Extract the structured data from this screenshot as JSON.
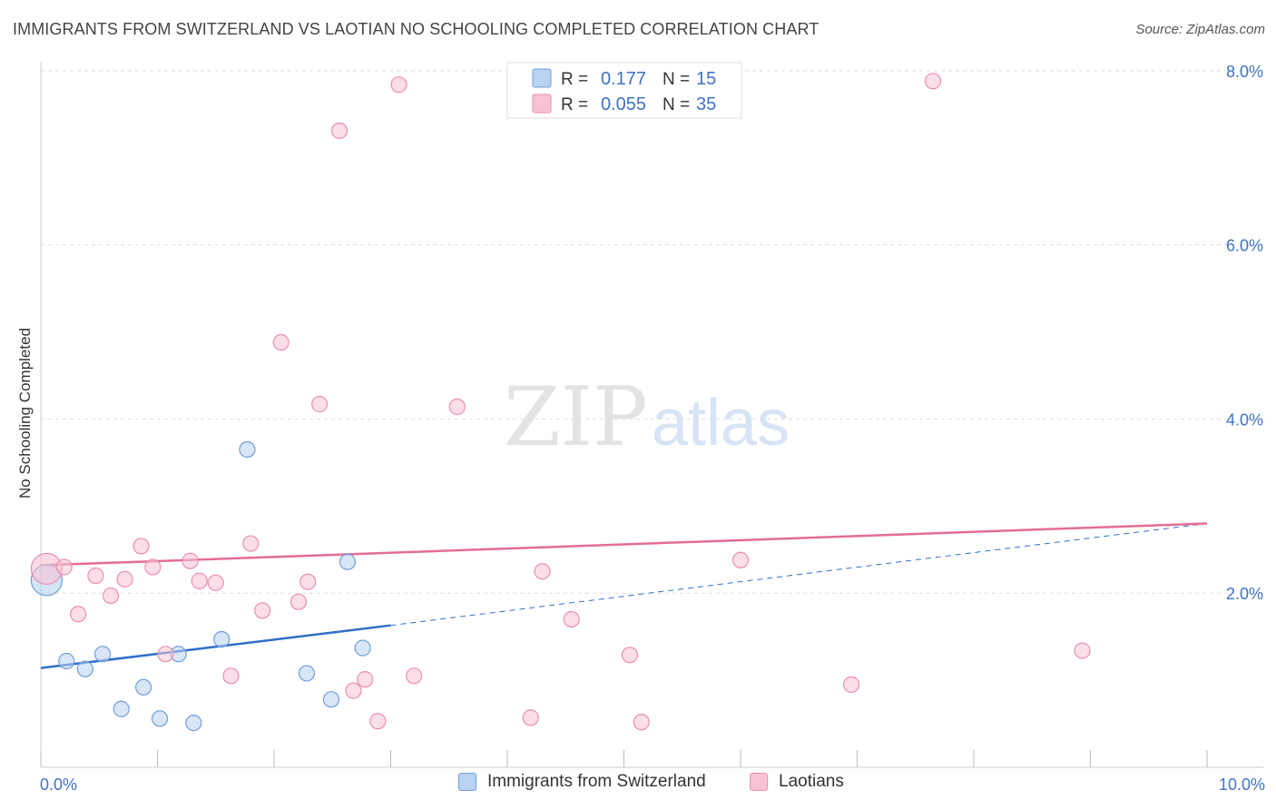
{
  "header": {
    "title": "IMMIGRANTS FROM SWITZERLAND VS LAOTIAN NO SCHOOLING COMPLETED CORRELATION CHART",
    "source": "Source: ZipAtlas.com"
  },
  "watermark": {
    "zip": "ZIP",
    "atlas": "atlas"
  },
  "colors": {
    "blue_fill": "#b9d2f2",
    "blue_stroke": "#6f9fd8",
    "blue_line": "#2f6fc9",
    "pink_fill": "#f7c3d3",
    "pink_stroke": "#ea8fac",
    "pink_line": "#e46d95",
    "value_text": "#3f73c4",
    "grid": "#dddddd"
  },
  "legend": {
    "rows": [
      {
        "r_label": "R = ",
        "r_value": "0.177",
        "n_label": "N = ",
        "n_value": "15",
        "series": "blue"
      },
      {
        "r_label": "R = ",
        "r_value": "0.055",
        "n_label": "N = ",
        "n_value": "35",
        "series": "pink"
      }
    ]
  },
  "chart_data": {
    "type": "scatter",
    "title": "IMMIGRANTS FROM SWITZERLAND VS LAOTIAN NO SCHOOLING COMPLETED CORRELATION CHART",
    "xlabel": "",
    "ylabel": "No Schooling Completed",
    "xlim": [
      0,
      10
    ],
    "ylim": [
      0,
      8.4
    ],
    "x_tick_labels": [
      "0.0%",
      "10.0%"
    ],
    "y_ticks": [
      2,
      4,
      6,
      8
    ],
    "y_tick_labels": [
      "2.0%",
      "4.0%",
      "6.0%",
      "8.0%"
    ],
    "grid": true,
    "legend_position": "bottom",
    "series": [
      {
        "name": "Immigrants from Switzerland",
        "color": "blue",
        "points": [
          {
            "x": 0.05,
            "y": 2.15,
            "big": true
          },
          {
            "x": 0.22,
            "y": 1.22
          },
          {
            "x": 0.38,
            "y": 1.13
          },
          {
            "x": 0.53,
            "y": 1.3
          },
          {
            "x": 0.69,
            "y": 0.67
          },
          {
            "x": 0.88,
            "y": 0.92
          },
          {
            "x": 1.02,
            "y": 0.56
          },
          {
            "x": 1.18,
            "y": 1.3
          },
          {
            "x": 1.31,
            "y": 0.51
          },
          {
            "x": 1.55,
            "y": 1.47
          },
          {
            "x": 1.77,
            "y": 3.65
          },
          {
            "x": 2.28,
            "y": 1.08
          },
          {
            "x": 2.49,
            "y": 0.78
          },
          {
            "x": 2.63,
            "y": 2.36
          },
          {
            "x": 2.76,
            "y": 1.37
          }
        ],
        "trend": {
          "x0": 0,
          "y0": 1.14,
          "x1": 3.0,
          "y1": 1.63,
          "dash_x1": 10,
          "dash_y1": 2.8
        }
      },
      {
        "name": "Laotians",
        "color": "pink",
        "points": [
          {
            "x": 0.05,
            "y": 2.28,
            "big": true
          },
          {
            "x": 0.2,
            "y": 2.3
          },
          {
            "x": 0.32,
            "y": 1.76
          },
          {
            "x": 0.47,
            "y": 2.2
          },
          {
            "x": 0.6,
            "y": 1.97
          },
          {
            "x": 0.72,
            "y": 2.16
          },
          {
            "x": 0.86,
            "y": 2.54
          },
          {
            "x": 0.96,
            "y": 2.3
          },
          {
            "x": 1.07,
            "y": 1.3
          },
          {
            "x": 1.28,
            "y": 2.37
          },
          {
            "x": 1.36,
            "y": 2.14
          },
          {
            "x": 1.5,
            "y": 2.12
          },
          {
            "x": 1.63,
            "y": 1.05
          },
          {
            "x": 1.8,
            "y": 2.57
          },
          {
            "x": 1.9,
            "y": 1.8
          },
          {
            "x": 2.06,
            "y": 4.88
          },
          {
            "x": 2.21,
            "y": 1.9
          },
          {
            "x": 2.29,
            "y": 2.13
          },
          {
            "x": 2.39,
            "y": 4.17
          },
          {
            "x": 2.56,
            "y": 7.31
          },
          {
            "x": 2.68,
            "y": 0.88
          },
          {
            "x": 2.78,
            "y": 1.01
          },
          {
            "x": 2.89,
            "y": 0.53
          },
          {
            "x": 3.07,
            "y": 7.84
          },
          {
            "x": 3.2,
            "y": 1.05
          },
          {
            "x": 3.57,
            "y": 4.14
          },
          {
            "x": 4.2,
            "y": 0.57
          },
          {
            "x": 4.3,
            "y": 2.25
          },
          {
            "x": 4.55,
            "y": 1.7
          },
          {
            "x": 5.05,
            "y": 1.29
          },
          {
            "x": 5.15,
            "y": 0.52
          },
          {
            "x": 6.0,
            "y": 2.38
          },
          {
            "x": 6.95,
            "y": 0.95
          },
          {
            "x": 7.65,
            "y": 7.88
          },
          {
            "x": 8.93,
            "y": 1.34
          }
        ],
        "trend": {
          "x0": 0,
          "y0": 2.32,
          "x1": 10,
          "y1": 2.8
        }
      }
    ]
  }
}
